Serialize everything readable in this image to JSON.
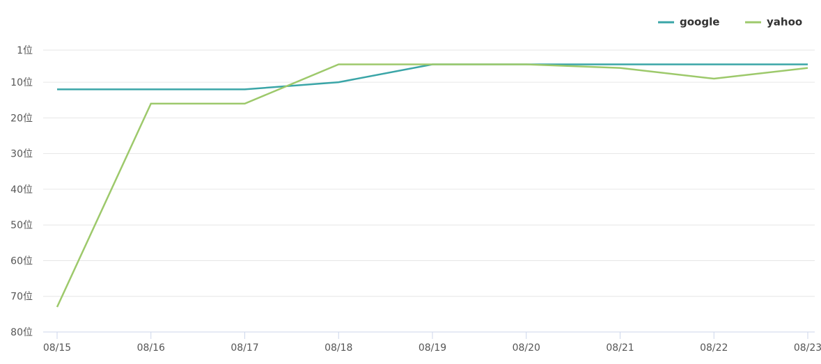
{
  "chart_data": {
    "type": "line",
    "categories": [
      "08/15",
      "08/16",
      "08/17",
      "08/18",
      "08/19",
      "08/20",
      "08/21",
      "08/22",
      "08/23"
    ],
    "series": [
      {
        "name": "google",
        "color": "#3aa5a7",
        "values": [
          12,
          12,
          12,
          10,
          5,
          5,
          5,
          5,
          5
        ]
      },
      {
        "name": "yahoo",
        "color": "#9dc96b",
        "values": [
          73,
          16,
          16,
          5,
          5,
          5,
          6,
          9,
          6
        ]
      }
    ],
    "ylim": [
      1,
      80
    ],
    "y_reversed": true,
    "yticks": [
      {
        "value": 1,
        "label": "1位"
      },
      {
        "value": 10,
        "label": "10位"
      },
      {
        "value": 20,
        "label": "20位"
      },
      {
        "value": 30,
        "label": "30位"
      },
      {
        "value": 40,
        "label": "40位"
      },
      {
        "value": 50,
        "label": "50位"
      },
      {
        "value": 60,
        "label": "60位"
      },
      {
        "value": 70,
        "label": "70位"
      },
      {
        "value": 80,
        "label": "80位"
      }
    ],
    "grid": true,
    "legend": "top-right"
  }
}
